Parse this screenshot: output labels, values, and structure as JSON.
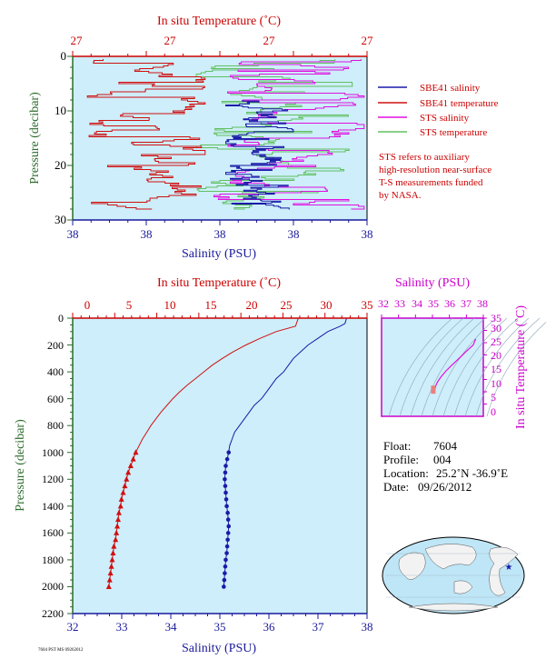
{
  "top_panel": {
    "title_top": "In situ Temperature (˚C)",
    "temp_ticks": [
      "27",
      "27",
      "27",
      "27",
      "27"
    ],
    "salinity_ticks": [
      "38",
      "38",
      "38",
      "38",
      "38"
    ],
    "pressure_ticks": [
      "0",
      "10",
      "20",
      "30"
    ],
    "xlabel": "Salinity (PSU)",
    "ylabel": "Pressure (decibar)",
    "legend": [
      {
        "label": "SBE41 salinity",
        "color": "#1a1aa8"
      },
      {
        "label": "SBE41 temperature",
        "color": "#d01010"
      },
      {
        "label": "STS salinity",
        "color": "#e010e0"
      },
      {
        "label": "STS temperature",
        "color": "#60c060"
      }
    ],
    "note": [
      "STS refers to auxiliary",
      "high-resolution near-surface",
      "T-S measurements funded",
      "by NASA."
    ]
  },
  "chart_data": [
    {
      "type": "line",
      "title": "In situ Temperature (˚C)",
      "xlabel": "Salinity (PSU)",
      "ylabel": "Pressure (decibar)",
      "ylim": [
        0,
        30
      ],
      "series": [
        {
          "name": "SBE41 salinity",
          "color": "#1a1aa8"
        },
        {
          "name": "SBE41 temperature",
          "color": "#d01010"
        },
        {
          "name": "STS salinity",
          "color": "#e010e0"
        },
        {
          "name": "STS temperature",
          "color": "#60c060"
        }
      ]
    },
    {
      "type": "line",
      "title": "In situ Temperature (˚C)",
      "xlabel": "Salinity (PSU)",
      "ylabel": "Pressure (decibar)",
      "temperature_xlim": [
        0,
        35
      ],
      "salinity_xlim": [
        32,
        38
      ],
      "ylim": [
        2200,
        0
      ],
      "temp_ticks": [
        "0",
        "5",
        "10",
        "15",
        "20",
        "25",
        "30",
        "35"
      ],
      "salinity_ticks": [
        "32",
        "33",
        "34",
        "35",
        "36",
        "37",
        "38"
      ],
      "pressure_ticks": [
        "0",
        "200",
        "400",
        "600",
        "800",
        "1000",
        "1200",
        "1400",
        "1600",
        "1800",
        "2000",
        "2200"
      ],
      "series": [
        {
          "name": "temperature",
          "color": "#d01010",
          "pressure": [
            5,
            60,
            100,
            150,
            200,
            250,
            300,
            350,
            400,
            450,
            500,
            550,
            600,
            650,
            700,
            750,
            800,
            850,
            900,
            950,
            1000
          ],
          "values": [
            26.8,
            26.5,
            24.2,
            22.3,
            20.6,
            19.1,
            17.8,
            16.6,
            15.6,
            14.6,
            13.6,
            12.7,
            11.9,
            11.2,
            10.5,
            9.9,
            9.3,
            8.8,
            8.3,
            7.9,
            7.5
          ]
        },
        {
          "name": "temperature (profile samples)",
          "color": "#d01010",
          "pressure": [
            1000,
            1050,
            1100,
            1150,
            1200,
            1250,
            1300,
            1350,
            1400,
            1450,
            1500,
            1550,
            1600,
            1650,
            1700,
            1750,
            1800,
            1850,
            1900,
            1950,
            2000
          ],
          "values": [
            7.5,
            7.2,
            6.9,
            6.6,
            6.4,
            6.2,
            6.0,
            5.8,
            5.7,
            5.5,
            5.4,
            5.3,
            5.2,
            5.1,
            4.9,
            4.8,
            4.7,
            4.6,
            4.5,
            4.4,
            4.3
          ]
        },
        {
          "name": "salinity",
          "color": "#1a1aa8",
          "pressure": [
            5,
            40,
            60,
            100,
            150,
            200,
            250,
            300,
            350,
            400,
            450,
            500,
            550,
            600,
            650,
            700,
            750,
            800,
            850,
            900,
            950,
            1000
          ],
          "values": [
            37.58,
            37.55,
            37.45,
            37.2,
            37.0,
            36.8,
            36.65,
            36.5,
            36.4,
            36.3,
            36.15,
            36.05,
            35.95,
            35.85,
            35.7,
            35.6,
            35.5,
            35.4,
            35.3,
            35.25,
            35.2,
            35.18
          ]
        },
        {
          "name": "salinity (profile samples)",
          "color": "#1a1aa8",
          "pressure": [
            1000,
            1050,
            1100,
            1150,
            1200,
            1250,
            1300,
            1350,
            1400,
            1450,
            1500,
            1550,
            1600,
            1650,
            1700,
            1750,
            1800,
            1850,
            1900,
            1950,
            2000
          ],
          "values": [
            35.18,
            35.15,
            35.12,
            35.11,
            35.1,
            35.11,
            35.12,
            35.13,
            35.14,
            35.16,
            35.17,
            35.18,
            35.17,
            35.16,
            35.15,
            35.14,
            35.12,
            35.11,
            35.1,
            35.09,
            35.08
          ]
        }
      ]
    },
    {
      "type": "line",
      "title": "Salinity (PSU)",
      "ylabel": "In situ Temperature (˚C)",
      "xlim": [
        32,
        38
      ],
      "ylim": [
        -5,
        35
      ],
      "salinity_ticks": [
        "32",
        "33",
        "34",
        "35",
        "36",
        "37",
        "38"
      ],
      "temp_ticks": [
        "0",
        "5",
        "10",
        "15",
        "20",
        "25",
        "30",
        "35"
      ],
      "series": [
        {
          "name": "T-S",
          "color": "#e010e0",
          "x": [
            37.55,
            37.4,
            37.0,
            36.7,
            36.4,
            36.1,
            35.8,
            35.5,
            35.3,
            35.2,
            35.15,
            35.12,
            35.1
          ],
          "y": [
            26.5,
            24.0,
            21.5,
            19.5,
            17.5,
            15.5,
            13.5,
            11.0,
            9.0,
            7.5,
            6.0,
            5.0,
            4.3
          ]
        }
      ]
    }
  ],
  "info": {
    "float_label": "Float:",
    "float_value": "7604",
    "profile_label": "Profile:",
    "profile_value": "004",
    "location_label": "Location:",
    "location_value": "25.2˚N  -36.9˚E",
    "date_label": "Date:",
    "date_value": "09/26/2012"
  },
  "bottom_ylabel": "Pressure (decibar)",
  "bottom_xlabel": "Salinity (PSU)",
  "bottom_title": "In situ Temperature (˚C)",
  "ts_title": "Salinity (PSU)",
  "ts_ylabel": "In situ Temperature (˚C)",
  "footer": "7604 PST MS 09262012",
  "colors": {
    "panel_bg": "#cdeefa",
    "temperature": "#d01010",
    "salinity": "#1a1aa8",
    "sts_salinity": "#e010e0",
    "sts_temperature": "#60c060",
    "ts_curve": "#e010e0",
    "axis_red": "#cc0000",
    "axis_blue": "#1a1a9c",
    "axis_green": "#2b6b2b",
    "axis_magenta": "#cc00cc"
  }
}
